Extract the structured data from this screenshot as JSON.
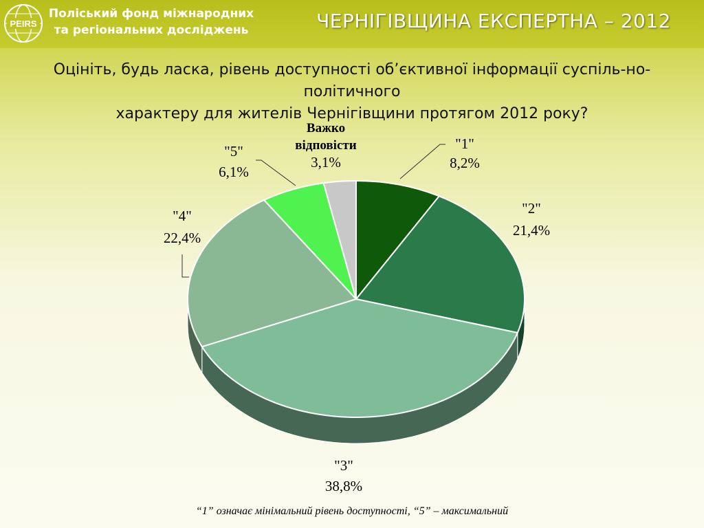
{
  "header": {
    "org_line1": "Поліський фонд міжнародних",
    "org_line2": "та регіональних досліджень",
    "logo_text": "PEIRS",
    "banner": "ЧЕРНІГІВЩИНА ЕКСПЕРТНА – 2012"
  },
  "question": {
    "line1": "Оцініть, будь ласка, рівень доступності об’єктивної інформації суспіль-но-політичного",
    "line2": "характеру для жителів Чернігівщини протягом 2012 року?"
  },
  "footnote": "“1” означає мінімальний рівень доступності, “5” – максимальний",
  "chart_data": {
    "type": "pie",
    "title": "",
    "slices": [
      {
        "label": "\"1\"",
        "value": 8.2,
        "value_text": "8,2%",
        "color": "#0e5a0a"
      },
      {
        "label": "\"2\"",
        "value": 21.4,
        "value_text": "21,4%",
        "color": "#2a7a4a"
      },
      {
        "label": "\"3\"",
        "value": 38.8,
        "value_text": "38,8%",
        "color": "#7fbc98"
      },
      {
        "label": "\"4\"",
        "value": 22.4,
        "value_text": "22,4%",
        "color": "#8ab894"
      },
      {
        "label": "\"5\"",
        "value": 6.1,
        "value_text": "6,1%",
        "color": "#4ff24f"
      },
      {
        "label_line1": "Важко",
        "label_line2": "відповісти",
        "value": 3.1,
        "value_text": "3,1%",
        "color": "#c8c8c8"
      }
    ]
  }
}
